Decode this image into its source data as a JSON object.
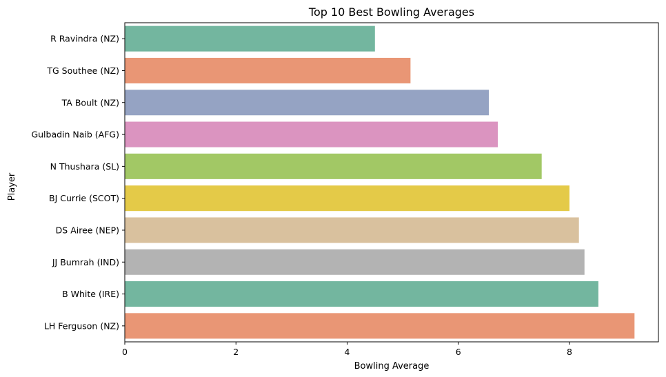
{
  "chart_data": {
    "type": "bar",
    "orientation": "horizontal",
    "title": "Top 10 Best Bowling Averages",
    "xlabel": "Bowling Average",
    "ylabel": "Player",
    "xlim": [
      0,
      9.6
    ],
    "xticks": [
      0,
      2,
      4,
      6,
      8
    ],
    "grid": false,
    "legend": "none",
    "categories": [
      "R Ravindra (NZ)",
      "TG Southee (NZ)",
      "TA Boult (NZ)",
      "Gulbadin Naib (AFG)",
      "N Thushara (SL)",
      "BJ Currie (SCOT)",
      "DS Airee (NEP)",
      "JJ Bumrah (IND)",
      "B White (IRE)",
      "LH Ferguson (NZ)"
    ],
    "values": [
      4.5,
      5.14,
      6.55,
      6.71,
      7.5,
      8.0,
      8.17,
      8.27,
      8.52,
      9.17
    ],
    "colors": [
      "#73b69f",
      "#e99675",
      "#95a3c3",
      "#db94c0",
      "#a2c865",
      "#e4ca48",
      "#d9c19e",
      "#b3b3b3",
      "#73b69f",
      "#e99675"
    ]
  }
}
